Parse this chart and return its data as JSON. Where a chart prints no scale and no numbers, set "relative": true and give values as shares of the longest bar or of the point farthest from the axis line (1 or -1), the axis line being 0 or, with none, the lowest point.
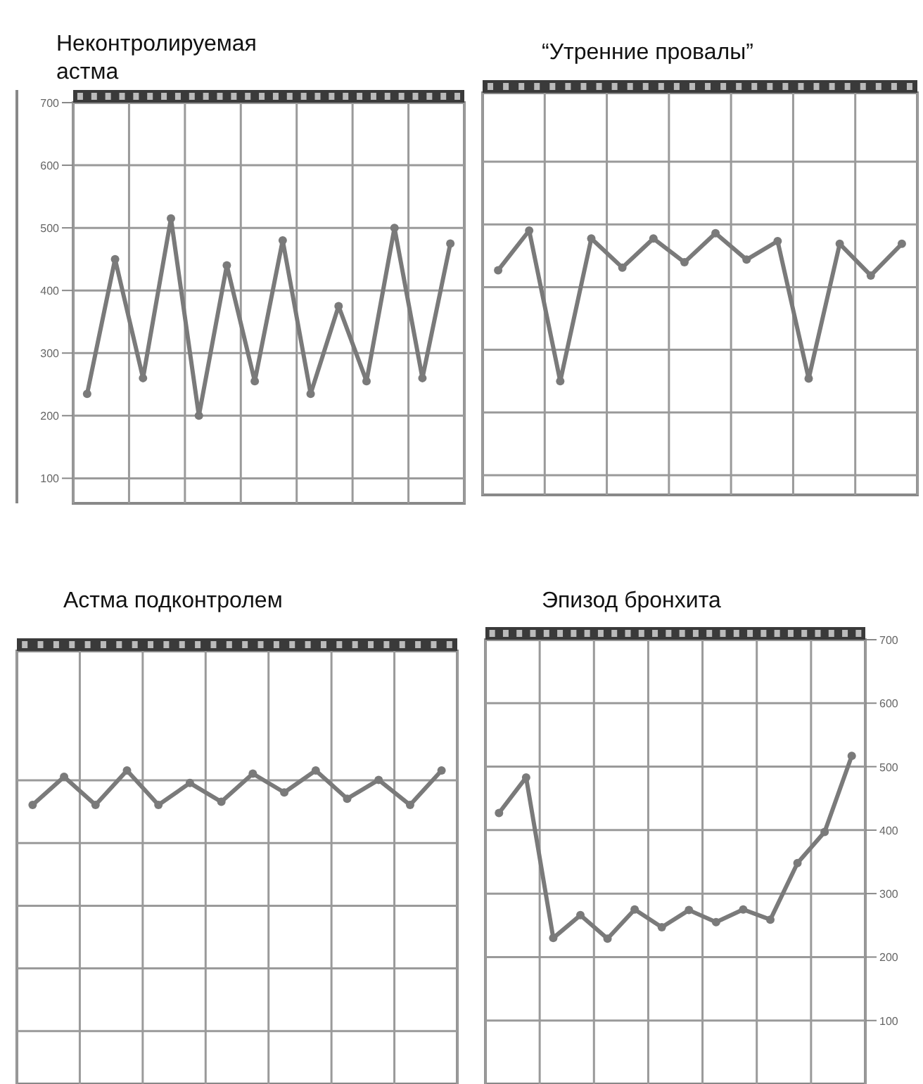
{
  "chart_data": [
    {
      "type": "line",
      "title": "Неконтролируемая астма",
      "categories": [
        null,
        null,
        null,
        null,
        null,
        null,
        null,
        null,
        null,
        null,
        null,
        null,
        null,
        null
      ],
      "ylim": [
        60,
        700
      ],
      "yticks": [
        100,
        200,
        300,
        400,
        500,
        600,
        700
      ],
      "tick_labels": "y",
      "grid": true,
      "marker": "circle",
      "line_style": "solid",
      "series": [
        {
          "color": "#7a7a7a",
          "values": [
            235,
            450,
            260,
            515,
            200,
            440,
            255,
            480,
            235,
            375,
            255,
            500,
            260,
            475
          ]
        }
      ]
    },
    {
      "type": "line",
      "title": "“Утренние провалы”",
      "categories": [
        null,
        null,
        null,
        null,
        null,
        null,
        null,
        null,
        null,
        null,
        null,
        null,
        null,
        null
      ],
      "relative": true,
      "tick_labels": false,
      "grid": true,
      "marker": "circle",
      "line_style": "solid",
      "series": [
        {
          "color": "#7a7a7a",
          "values": [
            0.85,
            1,
            0.43,
            0.97,
            0.86,
            0.97,
            0.88,
            0.99,
            0.89,
            0.96,
            0.44,
            0.95,
            0.83,
            0.95
          ]
        }
      ]
    },
    {
      "type": "line",
      "title": "Астма подконтролем",
      "categories": [
        null,
        null,
        null,
        null,
        null,
        null,
        null,
        null,
        null,
        null,
        null,
        null,
        null,
        null
      ],
      "relative": true,
      "tick_labels": false,
      "grid": true,
      "marker": "circle",
      "line_style": "solid",
      "series": [
        {
          "color": "#7a7a7a",
          "values": [
            0.89,
            0.98,
            0.89,
            1,
            0.89,
            0.96,
            0.9,
            0.99,
            0.93,
            1,
            0.91,
            0.97,
            0.89,
            1
          ]
        }
      ]
    },
    {
      "type": "line",
      "title": "Эпизод бронхита",
      "categories": [
        null,
        null,
        null,
        null,
        null,
        null,
        null,
        null,
        null,
        null,
        null,
        null,
        null,
        null
      ],
      "ylim": [
        0,
        700
      ],
      "yticks": [
        100,
        200,
        300,
        400,
        500,
        600,
        700
      ],
      "tick_labels": "y",
      "grid": true,
      "marker": "circle",
      "line_style": "solid",
      "series": [
        {
          "color": "#7a7a7a",
          "values": [
            427,
            483,
            230,
            266,
            229,
            275,
            247,
            274,
            255,
            275,
            259,
            348,
            397,
            517
          ]
        }
      ]
    }
  ]
}
